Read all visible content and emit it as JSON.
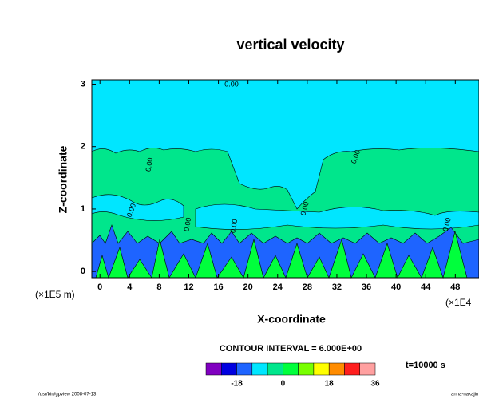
{
  "chart_data": {
    "type": "contour",
    "title": "vertical velocity",
    "x_label": "X-coordinate",
    "y_label": "Z-coordinate",
    "y_unit": "(×1E5 m)",
    "x_unit": "(×1E4",
    "xlim": [
      -1.1,
      51.2
    ],
    "ylim": [
      -0.1,
      3.07
    ],
    "xticks": [
      0,
      4,
      8,
      12,
      16,
      20,
      24,
      28,
      32,
      36,
      40,
      44,
      48
    ],
    "yticks": [
      0,
      1,
      2,
      3
    ],
    "contour_labels": [
      "0.00",
      "0.00",
      "0.00",
      "0.00",
      "0.00",
      "0.00",
      "0.00",
      "0.00"
    ],
    "contour_interval": "CONTOUR INTERVAL = 6.000E+00",
    "time": "t=10000 s",
    "footer_left": "/usr/bin/gpview 2008-07-13",
    "footer_right": "anna-nakajim",
    "colorbar": {
      "levels": [
        -30,
        -24,
        -18,
        -12,
        -6,
        0,
        6,
        12,
        18,
        24,
        30,
        36
      ],
      "colors": [
        "#8000c0",
        "#0000e0",
        "#1e64ff",
        "#00e6ff",
        "#00e68c",
        "#00ff3c",
        "#78ff00",
        "#ffff00",
        "#ff8c00",
        "#ff1e1e",
        "#ffa0a0"
      ],
      "ticks": [
        -18,
        0,
        18,
        36
      ]
    }
  }
}
